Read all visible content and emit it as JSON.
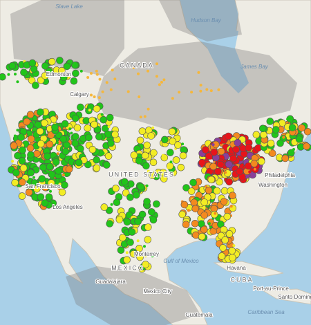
{
  "map": {
    "labels": [
      "Slave Lake",
      "Hudson Bay",
      "CANADA",
      "James Bay",
      "Edmonton",
      "Calgary",
      "UNITED STATES",
      "Philadelphia",
      "Washington",
      "San Francisco",
      "Los Angeles",
      "Monterrey",
      "Gulf of Mexico",
      "MEXICO",
      "Havana",
      "CUBA",
      "Guadalajara",
      "Mexico City",
      "Port-au-Prince",
      "Santo Domingo",
      "Guatemala",
      "Caribbean Sea"
    ]
  }
}
